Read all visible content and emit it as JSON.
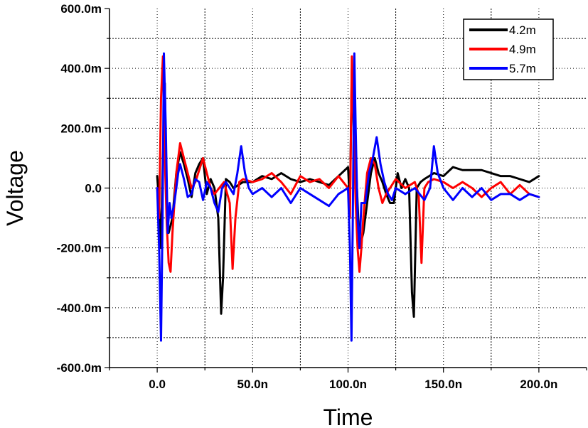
{
  "chart_data": {
    "type": "line",
    "xlabel": "Time",
    "ylabel": "Voltage",
    "x_unit": "s",
    "y_unit": "V",
    "xlim": [
      -2.5e-08,
      2.25e-07
    ],
    "ylim": [
      -0.6,
      0.6
    ],
    "x_ticks": [
      {
        "value": 0,
        "label": "0.0"
      },
      {
        "value": 5e-08,
        "label": "50.0n"
      },
      {
        "value": 1e-07,
        "label": "100.0n"
      },
      {
        "value": 1.5e-07,
        "label": "150.0n"
      },
      {
        "value": 2e-07,
        "label": "200.0n"
      }
    ],
    "y_ticks": [
      {
        "value": -0.6,
        "label": "-600.0m"
      },
      {
        "value": -0.4,
        "label": "-400.0m"
      },
      {
        "value": -0.2,
        "label": "-200.0m"
      },
      {
        "value": 0,
        "label": "0.0"
      },
      {
        "value": 0.2,
        "label": "200.0m"
      },
      {
        "value": 0.4,
        "label": "400.0m"
      },
      {
        "value": 0.6,
        "label": "600.0m"
      }
    ],
    "grid": true,
    "legend_position": "top-right",
    "series": [
      {
        "name": "4.2m",
        "color": "#000000",
        "x": [
          0,
          1e-09,
          2e-09,
          3e-09,
          4e-09,
          5e-09,
          6e-09,
          8e-09,
          1e-08,
          1.2e-08,
          1.4e-08,
          1.6e-08,
          1.8e-08,
          2e-08,
          2.2e-08,
          2.4e-08,
          2.6e-08,
          2.8e-08,
          3e-08,
          3.2e-08,
          3.35e-08,
          3.45e-08,
          3.6e-08,
          3.8e-08,
          4e-08,
          4.5e-08,
          5e-08,
          5.5e-08,
          6e-08,
          6.5e-08,
          7e-08,
          7.5e-08,
          8e-08,
          8.5e-08,
          9e-08,
          9.5e-08,
          1e-07,
          1.01e-07,
          1.02e-07,
          1.03e-07,
          1.04e-07,
          1.05e-07,
          1.06e-07,
          1.08e-07,
          1.1e-07,
          1.12e-07,
          1.14e-07,
          1.16e-07,
          1.18e-07,
          1.2e-07,
          1.22e-07,
          1.24e-07,
          1.26e-07,
          1.28e-07,
          1.3e-07,
          1.32e-07,
          1.335e-07,
          1.345e-07,
          1.36e-07,
          1.38e-07,
          1.4e-07,
          1.45e-07,
          1.5e-07,
          1.55e-07,
          1.6e-07,
          1.65e-07,
          1.7e-07,
          1.75e-07,
          1.8e-07,
          1.85e-07,
          1.9e-07,
          1.95e-07,
          2e-07
        ],
        "values": [
          0.04,
          -0.05,
          -0.2,
          0.1,
          0.35,
          -0.1,
          -0.15,
          -0.1,
          0.05,
          0.12,
          0.08,
          0.03,
          -0.03,
          0.05,
          0.08,
          0.1,
          -0.02,
          0.03,
          0.0,
          -0.1,
          -0.42,
          -0.3,
          0.03,
          0.02,
          0.0,
          0.02,
          0.02,
          0.04,
          0.03,
          0.05,
          0.03,
          0.02,
          0.03,
          0.02,
          0.01,
          0.04,
          0.07,
          -0.05,
          0.4,
          0.2,
          0.1,
          -0.05,
          -0.2,
          -0.15,
          -0.05,
          0.05,
          0.1,
          0.05,
          0.02,
          -0.02,
          -0.05,
          -0.05,
          0.05,
          0.0,
          0.03,
          0.0,
          -0.35,
          -0.43,
          0.0,
          0.02,
          0.03,
          0.05,
          0.04,
          0.07,
          0.06,
          0.06,
          0.06,
          0.05,
          0.04,
          0.04,
          0.03,
          0.02,
          0.04
        ]
      },
      {
        "name": "4.9m",
        "color": "#ff0000",
        "x": [
          0,
          1e-09,
          2e-09,
          3e-09,
          4e-09,
          5e-09,
          6e-09,
          7e-09,
          8e-09,
          1e-08,
          1.2e-08,
          1.4e-08,
          1.6e-08,
          1.8e-08,
          2e-08,
          2.2e-08,
          2.4e-08,
          2.6e-08,
          2.8e-08,
          3e-08,
          3.5e-08,
          3.8e-08,
          3.95e-08,
          4.1e-08,
          4.3e-08,
          4.5e-08,
          5e-08,
          5.5e-08,
          6e-08,
          6.5e-08,
          7e-08,
          7.5e-08,
          8e-08,
          8.5e-08,
          9e-08,
          9.5e-08,
          1e-07,
          1.01e-07,
          1.02e-07,
          1.03e-07,
          1.04e-07,
          1.05e-07,
          1.06e-07,
          1.07e-07,
          1.08e-07,
          1.1e-07,
          1.12e-07,
          1.14e-07,
          1.16e-07,
          1.18e-07,
          1.2e-07,
          1.25e-07,
          1.3e-07,
          1.35e-07,
          1.37e-07,
          1.385e-07,
          1.4e-07,
          1.42e-07,
          1.45e-07,
          1.5e-07,
          1.55e-07,
          1.6e-07,
          1.65e-07,
          1.7e-07,
          1.75e-07,
          1.8e-07,
          1.85e-07,
          1.9e-07,
          1.95e-07,
          2e-07
        ],
        "values": [
          0.0,
          -0.1,
          0.3,
          0.44,
          0.1,
          -0.12,
          -0.25,
          -0.28,
          -0.15,
          0.05,
          0.15,
          0.1,
          0.05,
          0.0,
          0.02,
          0.06,
          0.1,
          0.05,
          0.0,
          -0.02,
          0.02,
          -0.05,
          -0.27,
          -0.1,
          0.02,
          0.03,
          0.02,
          0.03,
          0.05,
          0.02,
          -0.02,
          0.04,
          0.02,
          0.03,
          0.0,
          0.04,
          0.0,
          -0.1,
          0.44,
          0.2,
          -0.05,
          -0.2,
          -0.28,
          -0.2,
          -0.1,
          0.05,
          0.1,
          0.08,
          0.0,
          -0.05,
          -0.02,
          0.03,
          0.0,
          0.02,
          -0.02,
          -0.25,
          0.0,
          0.02,
          0.03,
          0.02,
          0.0,
          0.02,
          0.0,
          -0.03,
          0.0,
          0.02,
          -0.02,
          0.01,
          -0.02,
          -0.03
        ]
      },
      {
        "name": "5.7m",
        "color": "#0000ff",
        "x": [
          0,
          1e-09,
          2e-09,
          2.8e-09,
          3.5e-09,
          4.5e-09,
          5.5e-09,
          6.5e-09,
          7.5e-09,
          9e-09,
          1.1e-08,
          1.2e-08,
          1.4e-08,
          1.6e-08,
          1.8e-08,
          2e-08,
          2.2e-08,
          2.4e-08,
          2.6e-08,
          2.8e-08,
          3e-08,
          3.2e-08,
          3.4e-08,
          3.6e-08,
          3.8e-08,
          4e-08,
          4.2e-08,
          4.4e-08,
          4.6e-08,
          4.8e-08,
          5e-08,
          5.5e-08,
          6e-08,
          6.5e-08,
          7e-08,
          7.5e-08,
          8e-08,
          8.5e-08,
          9e-08,
          9.5e-08,
          1e-07,
          1.01e-07,
          1.018e-07,
          1.025e-07,
          1.033e-07,
          1.04e-07,
          1.05e-07,
          1.06e-07,
          1.07e-07,
          1.09e-07,
          1.11e-07,
          1.13e-07,
          1.15e-07,
          1.17e-07,
          1.19e-07,
          1.21e-07,
          1.23e-07,
          1.25e-07,
          1.3e-07,
          1.35e-07,
          1.4e-07,
          1.43e-07,
          1.45e-07,
          1.47e-07,
          1.5e-07,
          1.55e-07,
          1.6e-07,
          1.65e-07,
          1.7e-07,
          1.75e-07,
          1.8e-07,
          1.85e-07,
          1.9e-07,
          1.95e-07,
          2e-07
        ],
        "values": [
          0.0,
          -0.2,
          -0.51,
          -0.1,
          0.45,
          0.2,
          -0.15,
          -0.05,
          -0.1,
          -0.05,
          0.05,
          0.08,
          0.03,
          -0.03,
          -0.02,
          0.03,
          0.02,
          -0.04,
          0.02,
          0.0,
          -0.05,
          -0.08,
          0.0,
          0.02,
          0.0,
          -0.02,
          0.05,
          0.14,
          0.05,
          0.0,
          -0.02,
          0.0,
          -0.03,
          0.0,
          -0.05,
          0.0,
          -0.02,
          -0.04,
          -0.06,
          -0.02,
          0.0,
          -0.2,
          -0.51,
          -0.1,
          0.45,
          0.2,
          -0.1,
          -0.2,
          -0.05,
          -0.05,
          0.05,
          0.1,
          0.17,
          0.08,
          0.02,
          -0.02,
          -0.04,
          0.0,
          -0.02,
          0.0,
          -0.04,
          0.0,
          0.14,
          0.05,
          0.0,
          -0.04,
          0.0,
          -0.03,
          0.0,
          -0.04,
          -0.02,
          -0.02,
          -0.04,
          -0.02,
          -0.03
        ]
      }
    ]
  }
}
